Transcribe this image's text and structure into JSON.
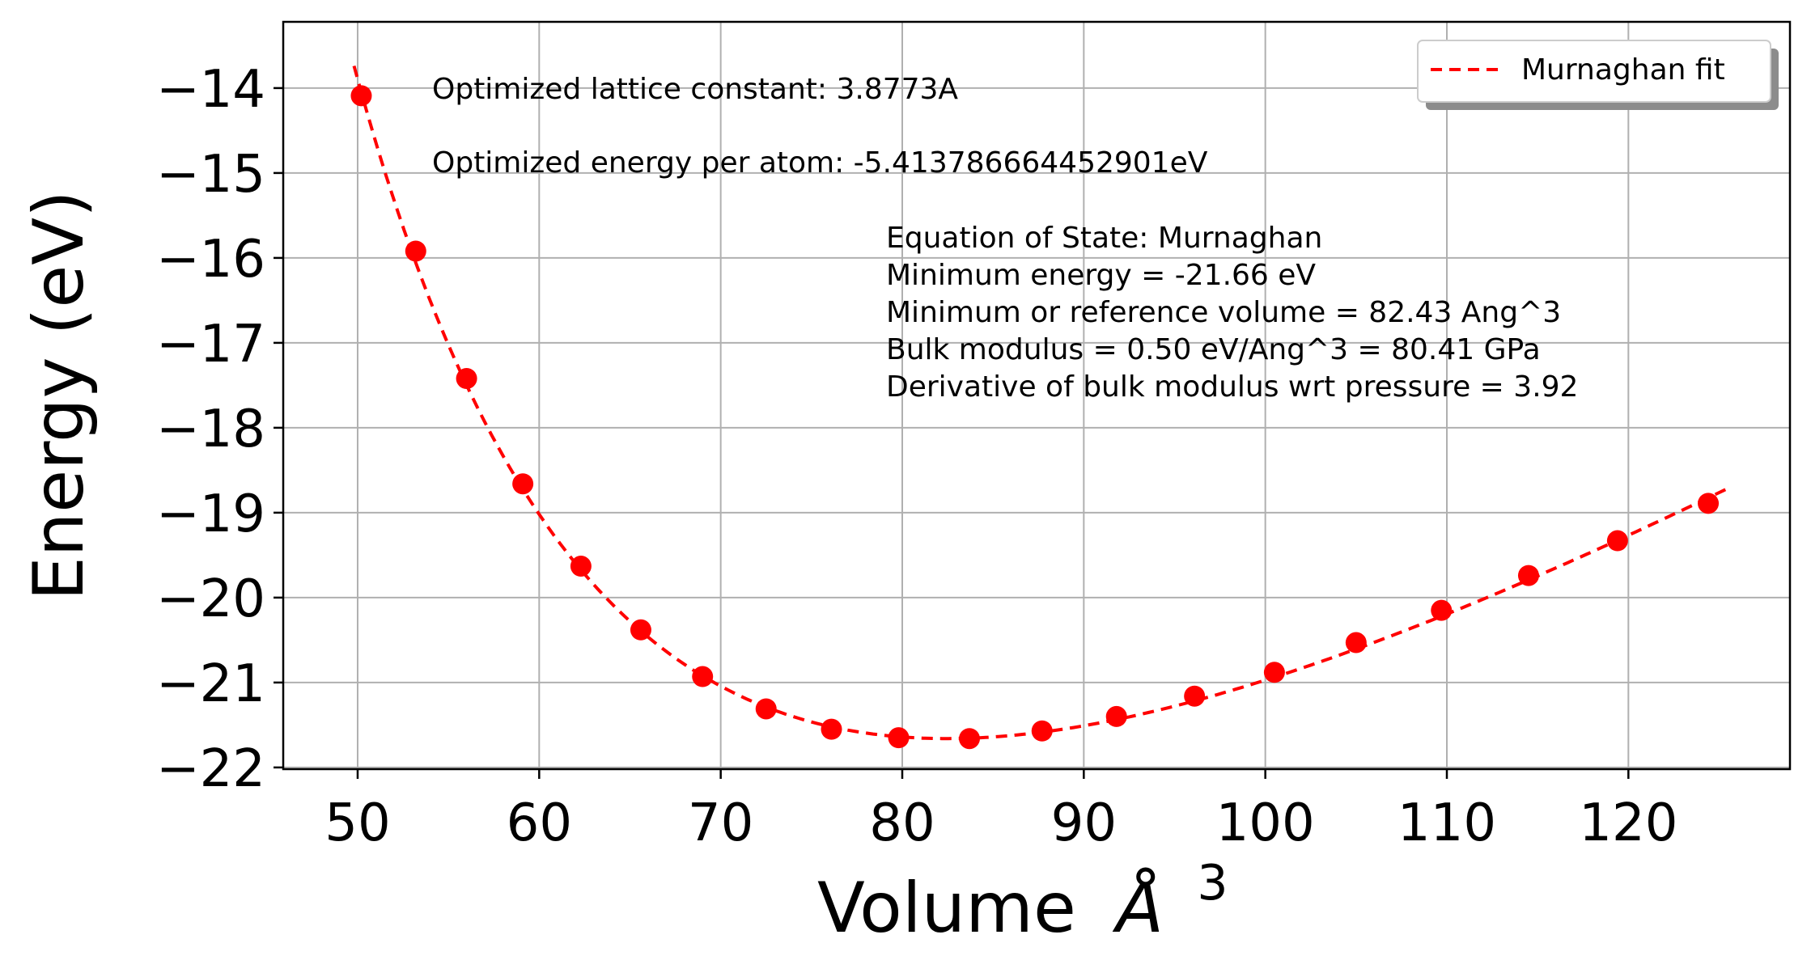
{
  "chart_data": {
    "type": "scatter",
    "xlabel": "Volume",
    "xlabel_unit": "Å",
    "xlabel_exp": "3",
    "ylabel": "Energy (eV)",
    "xlim": [
      45.9,
      128.9
    ],
    "ylim": [
      -22.02,
      -13.22
    ],
    "xticks": [
      50,
      60,
      70,
      80,
      90,
      100,
      110,
      120
    ],
    "yticks": [
      -14,
      -15,
      -16,
      -17,
      -18,
      -19,
      -20,
      -21,
      -22
    ],
    "grid": true,
    "legend_position": "top-right",
    "legend": [
      {
        "name": "Murnaghan fit",
        "style": "dashed",
        "color": "#ff0000"
      }
    ],
    "points_color": "#ff0000",
    "points": {
      "x": [
        50.2,
        53.2,
        56.0,
        59.1,
        62.3,
        65.6,
        69.0,
        72.5,
        76.1,
        79.8,
        83.7,
        87.7,
        91.8,
        96.1,
        100.5,
        105.0,
        109.7,
        114.5,
        119.4,
        124.4
      ],
      "y": [
        -14.09,
        -15.92,
        -17.42,
        -18.66,
        -19.63,
        -20.38,
        -20.93,
        -21.31,
        -21.55,
        -21.65,
        -21.66,
        -21.57,
        -21.4,
        -21.16,
        -20.88,
        -20.53,
        -20.15,
        -19.74,
        -19.33,
        -18.89
      ]
    },
    "fit": {
      "name": "Murnaghan fit",
      "E0": -21.66,
      "V0": 82.43,
      "B0": 0.5,
      "B0_prime": 3.92,
      "x_range": [
        49.8,
        125.6
      ]
    },
    "annotations": [
      "Optimized lattice constant: 3.8773A",
      "Optimized energy per atom: -5.413786664452901eV"
    ],
    "eos_box": [
      "Equation of State: Murnaghan",
      "Minimum energy = -21.66 eV",
      "Minimum or reference volume = 82.43 Ang^3",
      "Bulk modulus = 0.50 eV/Ang^3 = 80.41 GPa",
      "Derivative of bulk modulus wrt pressure = 3.92"
    ]
  }
}
